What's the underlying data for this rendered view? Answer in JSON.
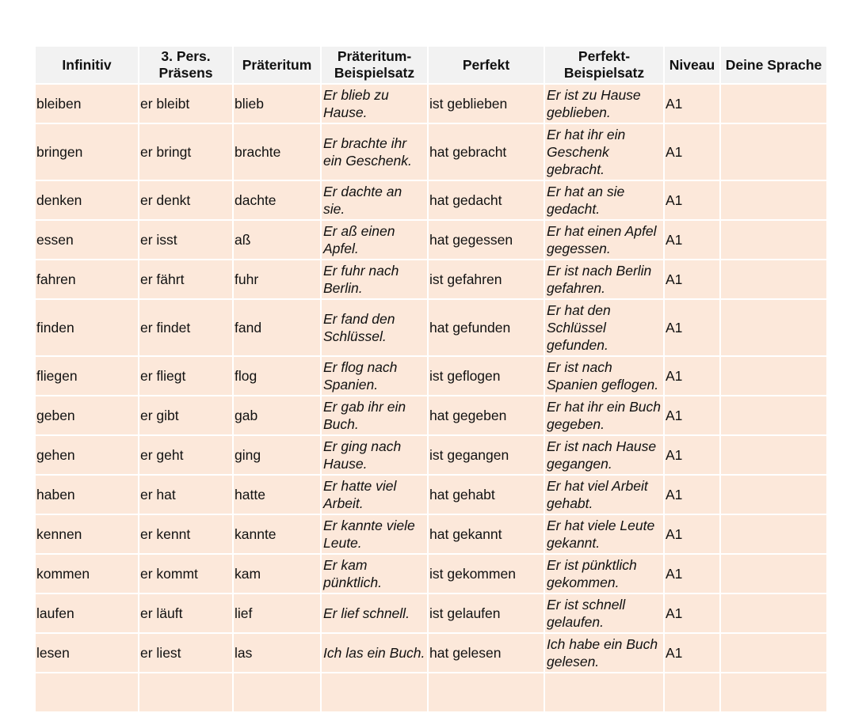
{
  "headers": [
    "Infinitiv",
    "3. Pers. Präsens",
    "Präteritum",
    "Präteritum-Beispielsatz",
    "Perfekt",
    "Perfekt-Beispielsatz",
    "Niveau",
    "Deine Sprache"
  ],
  "rows": [
    [
      "bleiben",
      "er bleibt",
      "blieb",
      "Er blieb zu Hause.",
      "ist geblieben",
      "Er ist zu Hause geblieben.",
      "A1",
      ""
    ],
    [
      "bringen",
      "er bringt",
      "brachte",
      "Er brachte ihr ein Geschenk.",
      "hat gebracht",
      "Er hat ihr ein Geschenk gebracht.",
      "A1",
      ""
    ],
    [
      "denken",
      "er denkt",
      "dachte",
      "Er dachte an sie.",
      "hat gedacht",
      "Er hat an sie gedacht.",
      "A1",
      ""
    ],
    [
      "essen",
      "er isst",
      "aß",
      "Er aß einen Apfel.",
      "hat gegessen",
      "Er hat einen Apfel gegessen.",
      "A1",
      ""
    ],
    [
      "fahren",
      "er fährt",
      "fuhr",
      "Er fuhr nach Berlin.",
      "ist gefahren",
      "Er ist nach Berlin gefahren.",
      "A1",
      ""
    ],
    [
      "finden",
      "er findet",
      "fand",
      "Er fand den Schlüssel.",
      "hat gefunden",
      "Er hat den Schlüssel gefunden.",
      "A1",
      ""
    ],
    [
      "fliegen",
      "er fliegt",
      "flog",
      "Er flog nach Spanien.",
      "ist geflogen",
      "Er ist nach Spanien geflogen.",
      "A1",
      ""
    ],
    [
      "geben",
      "er gibt",
      "gab",
      "Er gab ihr ein Buch.",
      "hat gegeben",
      "Er hat ihr ein Buch gegeben.",
      "A1",
      ""
    ],
    [
      "gehen",
      "er geht",
      "ging",
      "Er ging nach Hause.",
      "ist gegangen",
      "Er ist nach Hause gegangen.",
      "A1",
      ""
    ],
    [
      "haben",
      "er hat",
      "hatte",
      "Er hatte viel Arbeit.",
      "hat gehabt",
      "Er hat viel Arbeit gehabt.",
      "A1",
      ""
    ],
    [
      "kennen",
      "er kennt",
      "kannte",
      "Er kannte viele Leute.",
      "hat gekannt",
      "Er hat viele Leute gekannt.",
      "A1",
      ""
    ],
    [
      "kommen",
      "er kommt",
      "kam",
      "Er kam pünktlich.",
      "ist gekommen",
      "Er ist pünktlich gekommen.",
      "A1",
      ""
    ],
    [
      "laufen",
      "er läuft",
      "lief",
      "Er lief schnell.",
      "ist gelaufen",
      "Er ist schnell gelaufen.",
      "A1",
      ""
    ],
    [
      "lesen",
      "er liest",
      "las",
      "Ich las ein Buch.",
      "hat gelesen",
      "Ich habe ein Buch gelesen.",
      "A1",
      ""
    ]
  ]
}
